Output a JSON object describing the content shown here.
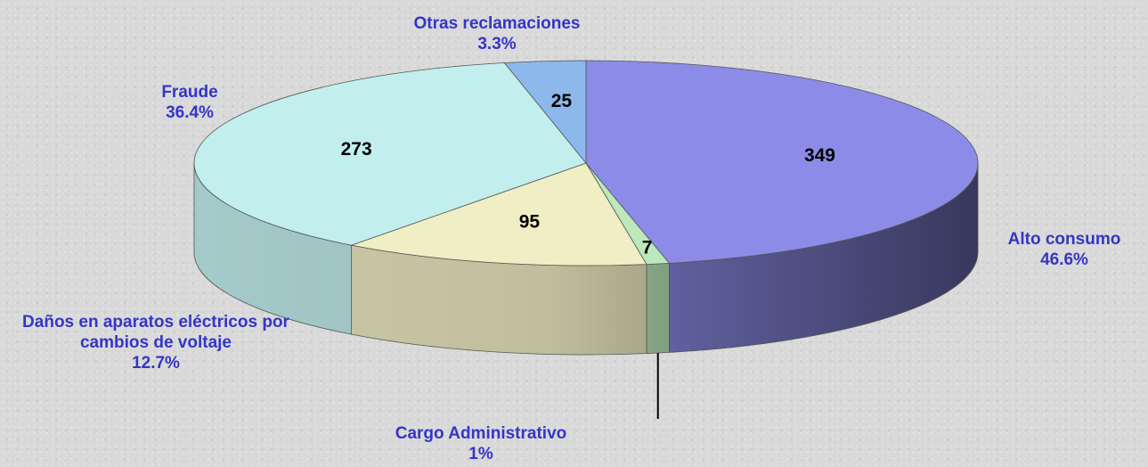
{
  "chart_data": {
    "type": "pie3d",
    "categories": [
      "Alto consumo",
      "Cargo Administrativo",
      "Daños en aparatos eléctricos por cambios de voltaje",
      "Fraude",
      "Otras reclamaciones"
    ],
    "values": [
      349,
      7,
      95,
      273,
      25
    ],
    "percent_labels": [
      "46.6%",
      "1%",
      "12.7%",
      "36.4%",
      "3.3%"
    ],
    "colors": [
      "#8c8ce8",
      "#bce8bc",
      "#f0eec4",
      "#c2eeee",
      "#8cb8ec"
    ]
  }
}
